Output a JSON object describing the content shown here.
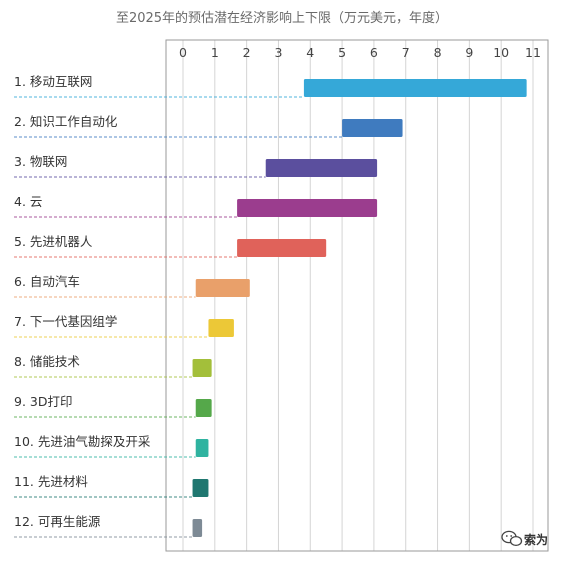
{
  "chart_data": {
    "type": "bar",
    "orientation": "horizontal-range",
    "title": "至2025年的预估潜在经济影响上下限（万元美元，年度）",
    "x_ticks": [
      "0",
      "1",
      "2",
      "3",
      "4",
      "5",
      "6",
      "7",
      "8",
      "9",
      "10",
      "11"
    ],
    "xlim": [
      0,
      11
    ],
    "grid": true,
    "categories": [
      "1. 移动互联网",
      "2. 知识工作自动化",
      "3. 物联网",
      "4. 云",
      "5. 先进机器人",
      "6. 自动汽车",
      "7. 下一代基因组学",
      "8. 储能技术",
      "9. 3D打印",
      "10. 先进油气勘探及开采",
      "11. 先进材料",
      "12. 可再生能源"
    ],
    "ranges": [
      [
        3.8,
        10.8
      ],
      [
        5.0,
        6.9
      ],
      [
        2.6,
        6.1
      ],
      [
        1.7,
        6.1
      ],
      [
        1.7,
        4.5
      ],
      [
        0.4,
        2.1
      ],
      [
        0.8,
        1.6
      ],
      [
        0.3,
        0.9
      ],
      [
        0.4,
        0.9
      ],
      [
        0.4,
        0.8
      ],
      [
        0.3,
        0.8
      ],
      [
        0.3,
        0.6
      ]
    ],
    "colors": [
      "#35a8d8",
      "#3f7bbf",
      "#5b4f9e",
      "#9b3d8e",
      "#e0625a",
      "#e9a06a",
      "#ecc837",
      "#a3bf3a",
      "#55a84a",
      "#2fb3a0",
      "#1f7770",
      "#7d8a95"
    ]
  },
  "watermark": {
    "text": "索为",
    "icon": "wechat-logo"
  }
}
